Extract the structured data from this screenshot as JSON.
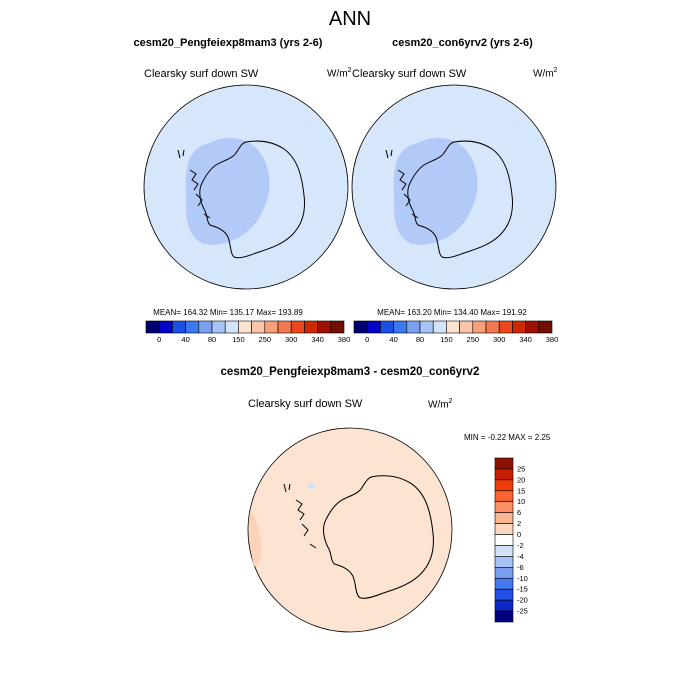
{
  "main_title": "ANN",
  "panels": [
    {
      "title": "cesm20_Pengfeiexp8mam3 (yrs 2-6)",
      "variable": "Clearsky surf down SW",
      "units_base": "W/m",
      "units_exp": "2",
      "stats": "MEAN= 164.32  Min= 135.17  Max= 193.89",
      "colorbar_labels": [
        "0",
        "40",
        "80",
        "150",
        "250",
        "300",
        "340",
        "380"
      ]
    },
    {
      "title": "cesm20_con6yrv2 (yrs 2-6)",
      "variable": "Clearsky surf down SW",
      "units_base": "W/m",
      "units_exp": "2",
      "stats": "MEAN= 163.20  Min= 134.40  Max= 191.92",
      "colorbar_labels": [
        "0",
        "40",
        "80",
        "150",
        "250",
        "300",
        "340",
        "380"
      ]
    }
  ],
  "diff_panel": {
    "title": "cesm20_Pengfeiexp8mam3 - cesm20_con6yrv2",
    "variable": "Clearsky surf down SW",
    "units_base": "W/m",
    "units_exp": "2",
    "stats": "MIN =  -0.22 MAX =   2.25",
    "colorbar_labels": [
      "25",
      "20",
      "15",
      "10",
      "6",
      "2",
      "0",
      "-2",
      "-4",
      "-6",
      "-10",
      "-15",
      "-20",
      "-25"
    ]
  },
  "colors": {
    "ocean_fill": "#d6e6fb",
    "antarctic_fill": "#b3c9f8",
    "diff_fill": "#fde4d2",
    "diff_patch": "#fbd3bb",
    "diff_blue_spot": "#cfe0f5",
    "abs_colorbar": [
      "#000070",
      "#0000c8",
      "#1850e8",
      "#3c78f0",
      "#7aa0f0",
      "#a8c3f5",
      "#d4e4fc",
      "#fde4d2",
      "#fbc4a8",
      "#f8a07a",
      "#f47850",
      "#ec4820",
      "#d02800",
      "#a01000",
      "#701000"
    ],
    "diff_colorbar": [
      "#901000",
      "#c81e00",
      "#f03c0a",
      "#f86432",
      "#fa9164",
      "#fbb592",
      "#fcd8c0",
      "#ffffff",
      "#d2e3f8",
      "#a8c3f5",
      "#7a9ff0",
      "#4878ee",
      "#2050e6",
      "#0a28c8",
      "#000080"
    ]
  }
}
